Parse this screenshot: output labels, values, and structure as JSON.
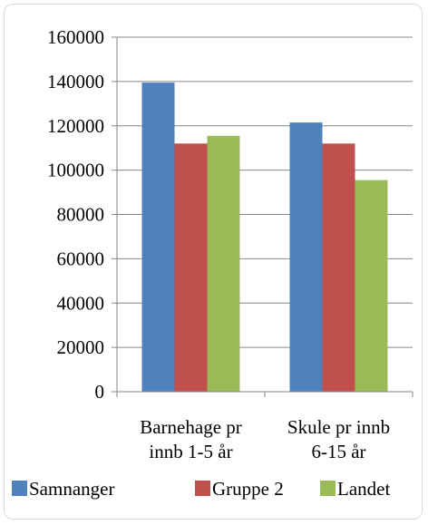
{
  "chart_data": {
    "type": "bar",
    "categories": [
      [
        "Barnehage pr",
        "innb 1-5 år"
      ],
      [
        "Skule pr innb",
        "6-15 år"
      ]
    ],
    "series": [
      {
        "name": "Samnanger",
        "color": "#4f81bd",
        "values": [
          139500,
          121500
        ]
      },
      {
        "name": "Gruppe 2",
        "color": "#c0504d",
        "values": [
          112000,
          112000
        ]
      },
      {
        "name": "Landet",
        "color": "#9bbb59",
        "values": [
          115500,
          95500
        ]
      }
    ],
    "ylim": [
      0,
      160000
    ],
    "yticks": [
      "0",
      "20000",
      "40000",
      "60000",
      "80000",
      "100000",
      "120000",
      "140000",
      "160000"
    ],
    "title": "",
    "xlabel": "",
    "ylabel": "",
    "grid": true,
    "legend": "bottom"
  }
}
